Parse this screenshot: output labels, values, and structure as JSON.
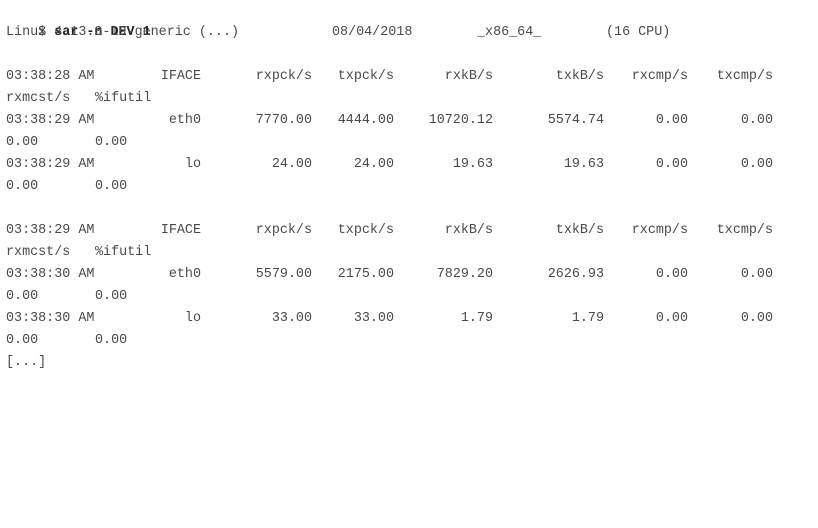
{
  "terminal": {
    "prompt": "$ ",
    "command": "sar -n DEV 1",
    "sysinfo": {
      "os": "Linux 4.13.0-19-generic (...)",
      "date": "08/04/2018",
      "arch": "_x86_64_",
      "cpus": "(16 CPU)"
    },
    "headers": {
      "time": "03:38:28 AM",
      "cols": [
        "IFACE",
        "rxpck/s",
        "txpck/s",
        "rxkB/s",
        "txkB/s",
        "rxcmp/s",
        "txcmp/s"
      ],
      "wrap": [
        "rxmcst/s",
        "%ifutil"
      ]
    },
    "blocks": [
      {
        "header_time": "03:38:28 AM",
        "rows": [
          {
            "time": "03:38:29 AM",
            "iface": "eth0",
            "vals": [
              "7770.00",
              "4444.00",
              "10720.12",
              "5574.74",
              "0.00",
              "0.00"
            ],
            "wrap": [
              "0.00",
              "0.00"
            ]
          },
          {
            "time": "03:38:29 AM",
            "iface": "lo",
            "vals": [
              "24.00",
              "24.00",
              "19.63",
              "19.63",
              "0.00",
              "0.00"
            ],
            "wrap": [
              "0.00",
              "0.00"
            ]
          }
        ]
      },
      {
        "header_time": "03:38:29 AM",
        "rows": [
          {
            "time": "03:38:30 AM",
            "iface": "eth0",
            "vals": [
              "5579.00",
              "2175.00",
              "7829.20",
              "2626.93",
              "0.00",
              "0.00"
            ],
            "wrap": [
              "0.00",
              "0.00"
            ]
          },
          {
            "time": "03:38:30 AM",
            "iface": "lo",
            "vals": [
              "33.00",
              "33.00",
              "1.79",
              "1.79",
              "0.00",
              "0.00"
            ],
            "wrap": [
              "0.00",
              "0.00"
            ]
          }
        ]
      }
    ],
    "ellipsis": "[...]"
  }
}
